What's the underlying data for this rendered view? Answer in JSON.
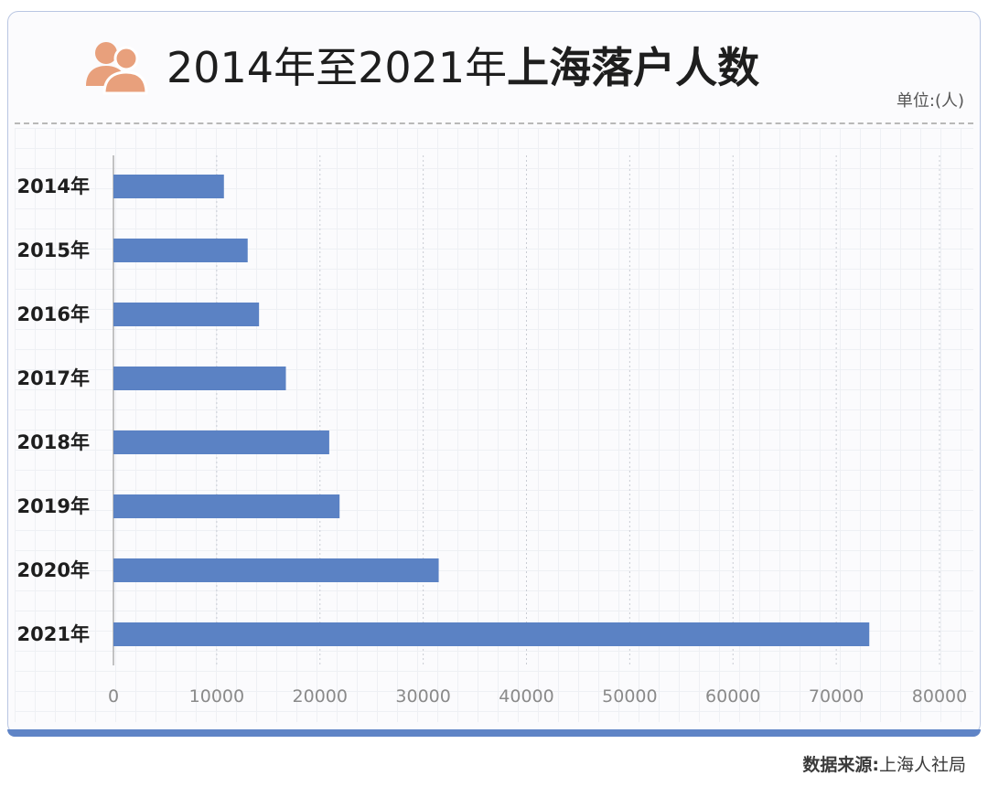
{
  "header": {
    "title_regular": "2014年至2021年",
    "title_bold": "上海落户人数",
    "unit": "单位:(人)",
    "icon": "people-icon"
  },
  "footer": {
    "source_label": "数据来源:",
    "source_value": "上海人社局"
  },
  "colors": {
    "bar": "#5b82c4",
    "icon": "#e8a07c",
    "frame": "#b9c6e2",
    "accent_bar": "#5f84c6"
  },
  "chart_data": {
    "type": "bar",
    "orientation": "horizontal",
    "title": "2014年至2021年上海落户人数",
    "xlabel": "",
    "ylabel": "",
    "unit": "单位:(人)",
    "categories": [
      "2014年",
      "2015年",
      "2016年",
      "2017年",
      "2018年",
      "2019年",
      "2020年",
      "2021年"
    ],
    "values": [
      10700,
      13000,
      14100,
      16700,
      20900,
      21900,
      31500,
      73200
    ],
    "xlim": [
      0,
      80000
    ],
    "xticks": [
      "0",
      "10000",
      "20000",
      "30000",
      "40000",
      "50000",
      "60000",
      "70000",
      "80000"
    ],
    "grid": true,
    "legend": "none"
  }
}
